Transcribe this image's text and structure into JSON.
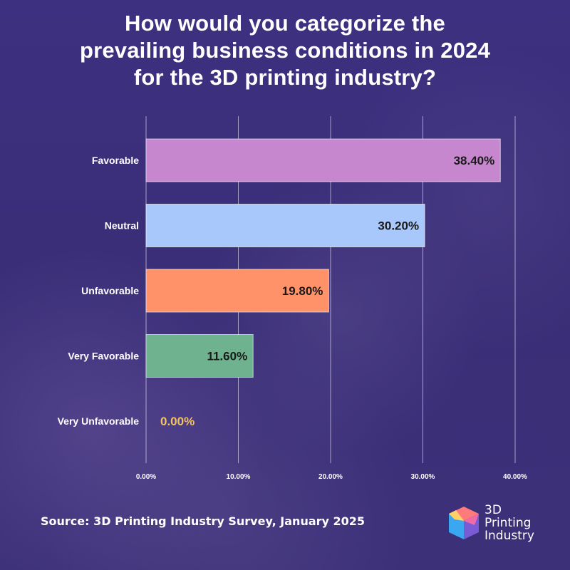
{
  "title_lines": [
    "How would you categorize the",
    "prevailing business conditions in 2024",
    "for the 3D printing industry?"
  ],
  "source": "Source: 3D Printing Industry Survey, January 2025",
  "logo": {
    "lines": [
      "3D",
      "Printing",
      "Industry"
    ],
    "icon": "3d-printing-industry-cube-logo"
  },
  "colors": {
    "background": "#3b2f78",
    "Favorable": "#c787cf",
    "Neutral": "#a8c8fb",
    "Unfavorable": "#ff9268",
    "Very Favorable": "#6fb28f",
    "Very Unfavorable": "#f5c35c"
  },
  "chart_data": {
    "type": "bar",
    "orientation": "horizontal",
    "categories": [
      "Favorable",
      "Neutral",
      "Unfavorable",
      "Very Favorable",
      "Very Unfavorable"
    ],
    "values": [
      38.4,
      30.2,
      19.8,
      11.6,
      0.0
    ],
    "data_labels": [
      "38.40%",
      "30.20%",
      "19.80%",
      "11.60%",
      "0.00%"
    ],
    "x_ticks": [
      "0.00%",
      "10.00%",
      "20.00%",
      "30.00%",
      "40.00%"
    ],
    "xlim": [
      0,
      40
    ],
    "grid": true
  }
}
